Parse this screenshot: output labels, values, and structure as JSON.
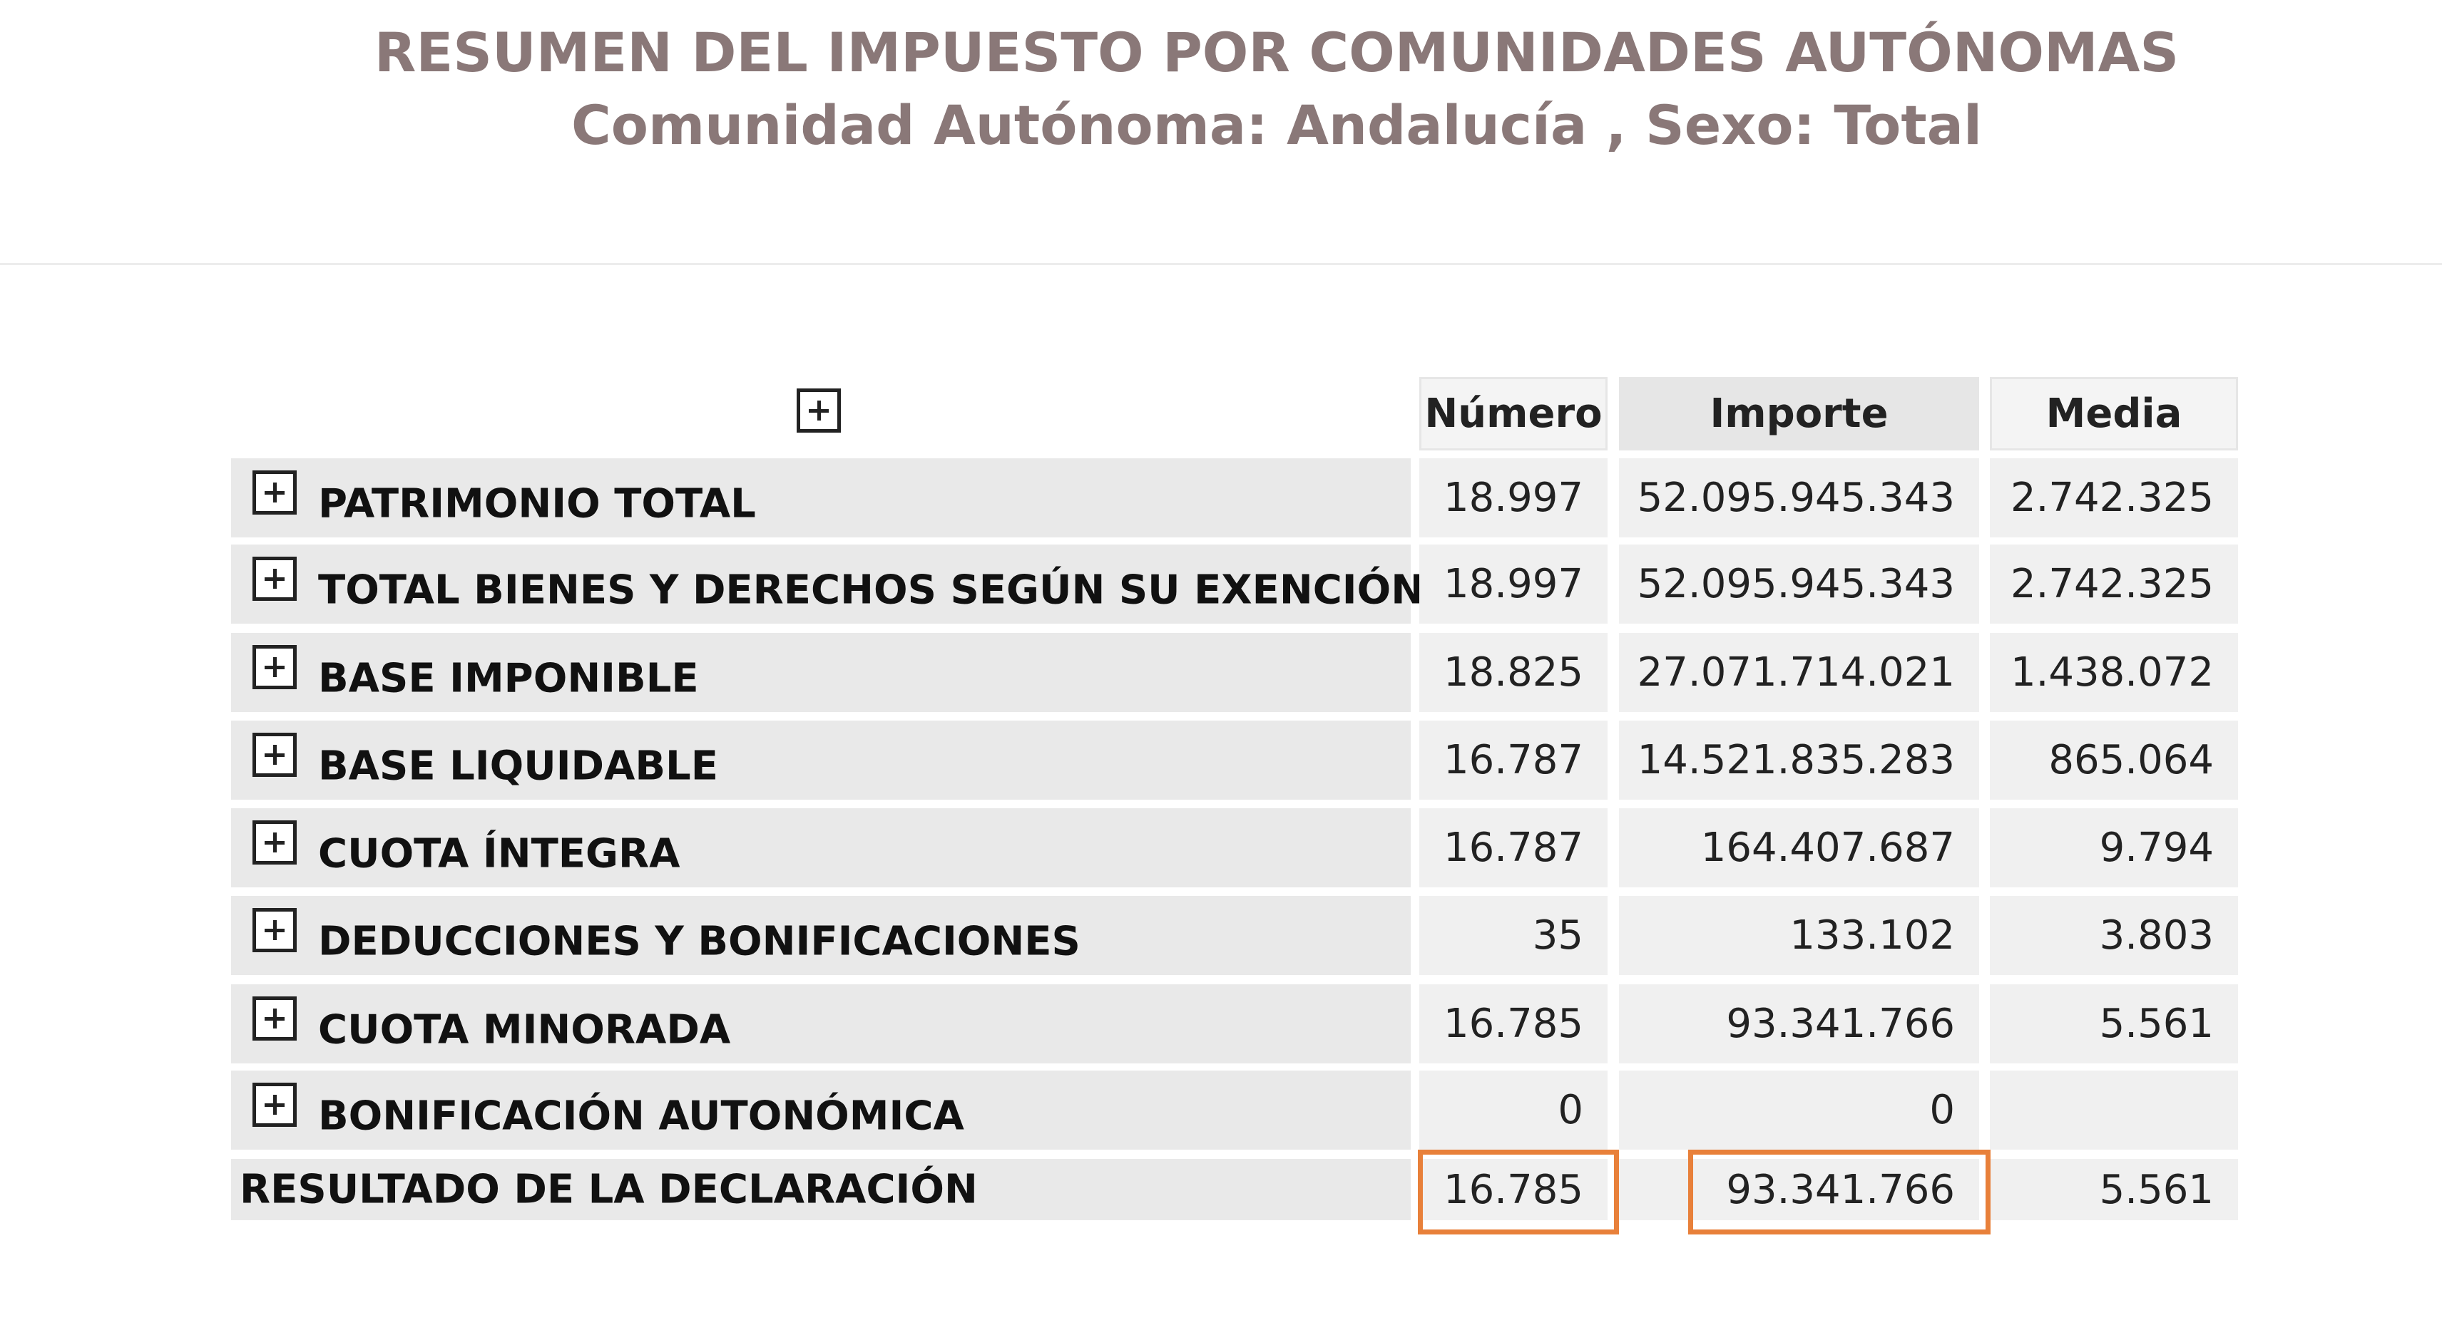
{
  "header": {
    "title": "RESUMEN DEL IMPUESTO POR COMUNIDADES AUTÓNOMAS",
    "subtitle": "Comunidad Autónoma: Andalucía , Sexo: Total"
  },
  "table": {
    "columns": [
      "Número",
      "Importe",
      "Media"
    ],
    "rows": [
      {
        "label": "PATRIMONIO TOTAL",
        "numero": "18.997",
        "importe": "52.095.945.343",
        "media": "2.742.325"
      },
      {
        "label": "TOTAL BIENES Y DERECHOS SEGÚN SU EXENCIÓN",
        "numero": "18.997",
        "importe": "52.095.945.343",
        "media": "2.742.325"
      },
      {
        "label": "BASE IMPONIBLE",
        "numero": "18.825",
        "importe": "27.071.714.021",
        "media": "1.438.072"
      },
      {
        "label": "BASE LIQUIDABLE",
        "numero": "16.787",
        "importe": "14.521.835.283",
        "media": "865.064"
      },
      {
        "label": "CUOTA ÍNTEGRA",
        "numero": "16.787",
        "importe": "164.407.687",
        "media": "9.794"
      },
      {
        "label": "DEDUCCIONES Y BONIFICACIONES",
        "numero": "35",
        "importe": "133.102",
        "media": "3.803"
      },
      {
        "label": "CUOTA MINORADA",
        "numero": "16.785",
        "importe": "93.341.766",
        "media": "5.561"
      },
      {
        "label": "BONIFICACIÓN AUTONÓMICA",
        "numero": "0",
        "importe": "0",
        "media": ""
      }
    ],
    "result_row": {
      "label": "RESULTADO DE LA DECLARACIÓN",
      "numero": "16.785",
      "importe": "93.341.766",
      "media": "5.561"
    }
  },
  "colors": {
    "title": "#8a7878",
    "highlight": "#e8803a",
    "cell_bg": "#f0f0f0",
    "label_bg": "#e9e9e9"
  },
  "icons": {
    "expand": "plus-square-icon"
  }
}
